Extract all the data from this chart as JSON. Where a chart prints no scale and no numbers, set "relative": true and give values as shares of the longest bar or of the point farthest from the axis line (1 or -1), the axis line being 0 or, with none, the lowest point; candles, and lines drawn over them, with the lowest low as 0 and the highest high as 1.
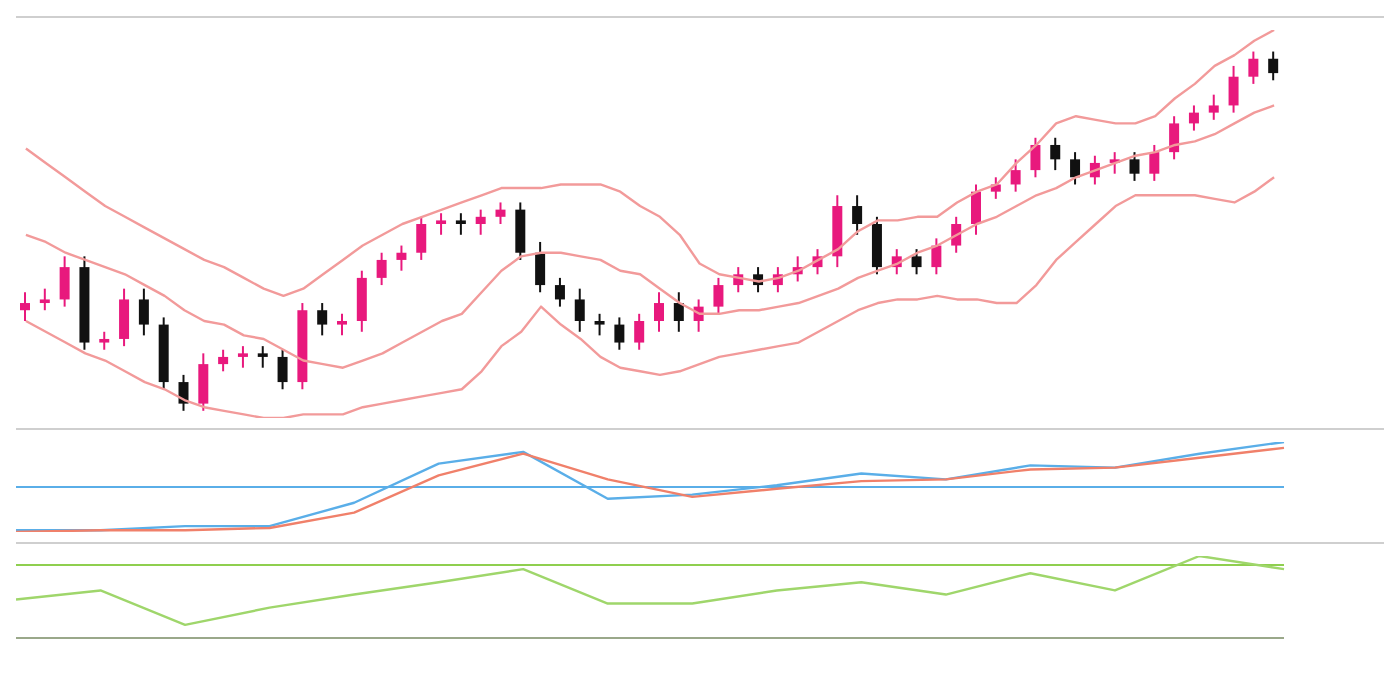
{
  "chart_data": [
    {
      "type": "candlestick",
      "relative": true,
      "legend": false,
      "categories": [
        null,
        null,
        null,
        null,
        null,
        null,
        null,
        null,
        null,
        null,
        null,
        null,
        null,
        null,
        null,
        null,
        null,
        null,
        null,
        null,
        null,
        null,
        null,
        null,
        null,
        null,
        null,
        null,
        null,
        null,
        null,
        null,
        null,
        null,
        null,
        null,
        null,
        null,
        null,
        null,
        null,
        null,
        null,
        null,
        null,
        null,
        null,
        null,
        null,
        null,
        null,
        null,
        null,
        null,
        null,
        null,
        null,
        null,
        null,
        null,
        null,
        null,
        null,
        null
      ],
      "ohlc": [
        [
          0.28,
          0.33,
          0.25,
          0.3
        ],
        [
          0.3,
          0.34,
          0.28,
          0.31
        ],
        [
          0.31,
          0.43,
          0.29,
          0.4
        ],
        [
          0.4,
          0.43,
          0.17,
          0.19
        ],
        [
          0.19,
          0.22,
          0.17,
          0.2
        ],
        [
          0.2,
          0.34,
          0.18,
          0.31
        ],
        [
          0.31,
          0.34,
          0.21,
          0.24
        ],
        [
          0.24,
          0.26,
          0.06,
          0.08
        ],
        [
          0.08,
          0.1,
          0.0,
          0.02
        ],
        [
          0.02,
          0.16,
          0.0,
          0.13
        ],
        [
          0.13,
          0.17,
          0.11,
          0.15
        ],
        [
          0.15,
          0.18,
          0.12,
          0.16
        ],
        [
          0.16,
          0.18,
          0.12,
          0.15
        ],
        [
          0.15,
          0.17,
          0.06,
          0.08
        ],
        [
          0.08,
          0.3,
          0.06,
          0.28
        ],
        [
          0.28,
          0.3,
          0.21,
          0.24
        ],
        [
          0.24,
          0.27,
          0.21,
          0.25
        ],
        [
          0.25,
          0.39,
          0.22,
          0.37
        ],
        [
          0.37,
          0.44,
          0.35,
          0.42
        ],
        [
          0.42,
          0.46,
          0.39,
          0.44
        ],
        [
          0.44,
          0.54,
          0.42,
          0.52
        ],
        [
          0.52,
          0.55,
          0.49,
          0.53
        ],
        [
          0.53,
          0.55,
          0.49,
          0.52
        ],
        [
          0.52,
          0.56,
          0.49,
          0.54
        ],
        [
          0.54,
          0.58,
          0.52,
          0.56
        ],
        [
          0.56,
          0.58,
          0.42,
          0.44
        ],
        [
          0.44,
          0.47,
          0.33,
          0.35
        ],
        [
          0.35,
          0.37,
          0.29,
          0.31
        ],
        [
          0.31,
          0.34,
          0.22,
          0.25
        ],
        [
          0.25,
          0.27,
          0.21,
          0.24
        ],
        [
          0.24,
          0.26,
          0.17,
          0.19
        ],
        [
          0.19,
          0.27,
          0.17,
          0.25
        ],
        [
          0.25,
          0.33,
          0.22,
          0.3
        ],
        [
          0.3,
          0.33,
          0.22,
          0.25
        ],
        [
          0.25,
          0.31,
          0.22,
          0.29
        ],
        [
          0.29,
          0.37,
          0.27,
          0.35
        ],
        [
          0.35,
          0.4,
          0.33,
          0.38
        ],
        [
          0.38,
          0.4,
          0.33,
          0.35
        ],
        [
          0.35,
          0.4,
          0.33,
          0.38
        ],
        [
          0.38,
          0.43,
          0.36,
          0.4
        ],
        [
          0.4,
          0.45,
          0.38,
          0.43
        ],
        [
          0.43,
          0.6,
          0.4,
          0.57
        ],
        [
          0.57,
          0.6,
          0.49,
          0.52
        ],
        [
          0.52,
          0.54,
          0.38,
          0.4
        ],
        [
          0.4,
          0.45,
          0.38,
          0.43
        ],
        [
          0.43,
          0.45,
          0.38,
          0.4
        ],
        [
          0.4,
          0.48,
          0.38,
          0.46
        ],
        [
          0.46,
          0.54,
          0.44,
          0.52
        ],
        [
          0.52,
          0.63,
          0.49,
          0.61
        ],
        [
          0.61,
          0.65,
          0.59,
          0.63
        ],
        [
          0.63,
          0.7,
          0.61,
          0.67
        ],
        [
          0.67,
          0.76,
          0.65,
          0.74
        ],
        [
          0.74,
          0.76,
          0.67,
          0.7
        ],
        [
          0.7,
          0.72,
          0.63,
          0.65
        ],
        [
          0.65,
          0.71,
          0.63,
          0.69
        ],
        [
          0.69,
          0.72,
          0.66,
          0.7
        ],
        [
          0.7,
          0.72,
          0.64,
          0.66
        ],
        [
          0.66,
          0.74,
          0.64,
          0.72
        ],
        [
          0.72,
          0.82,
          0.7,
          0.8
        ],
        [
          0.8,
          0.85,
          0.78,
          0.83
        ],
        [
          0.83,
          0.88,
          0.81,
          0.85
        ],
        [
          0.85,
          0.96,
          0.83,
          0.93
        ],
        [
          0.93,
          1.0,
          0.91,
          0.98
        ],
        [
          0.98,
          1.0,
          0.92,
          0.94
        ]
      ],
      "colors": [
        "#e8197d",
        "#e8197d",
        "#e8197d",
        "#111111",
        "#e8197d",
        "#e8197d",
        "#111111",
        "#111111",
        "#111111",
        "#e8197d",
        "#e8197d",
        "#e8197d",
        "#111111",
        "#111111",
        "#e8197d",
        "#111111",
        "#e8197d",
        "#e8197d",
        "#e8197d",
        "#e8197d",
        "#e8197d",
        "#e8197d",
        "#111111",
        "#e8197d",
        "#e8197d",
        "#111111",
        "#111111",
        "#111111",
        "#111111",
        "#111111",
        "#111111",
        "#e8197d",
        "#e8197d",
        "#111111",
        "#e8197d",
        "#e8197d",
        "#e8197d",
        "#111111",
        "#e8197d",
        "#e8197d",
        "#e8197d",
        "#e8197d",
        "#111111",
        "#111111",
        "#e8197d",
        "#111111",
        "#e8197d",
        "#e8197d",
        "#e8197d",
        "#e8197d",
        "#e8197d",
        "#e8197d",
        "#111111",
        "#111111",
        "#e8197d",
        "#e8197d",
        "#111111",
        "#e8197d",
        "#e8197d",
        "#e8197d",
        "#e8197d",
        "#e8197d",
        "#e8197d",
        "#111111"
      ],
      "series": [
        {
          "type": "line",
          "color": "#f29a9a",
          "values": [
            0.73,
            0.69,
            0.65,
            0.61,
            0.57,
            0.54,
            0.51,
            0.48,
            0.45,
            0.42,
            0.4,
            0.37,
            0.34,
            0.32,
            0.34,
            0.38,
            0.42,
            0.46,
            0.49,
            0.52,
            0.54,
            0.56,
            0.58,
            0.6,
            0.62,
            0.62,
            0.62,
            0.63,
            0.63,
            0.63,
            0.61,
            0.57,
            0.54,
            0.49,
            0.41,
            0.38,
            0.37,
            0.36,
            0.37,
            0.39,
            0.42,
            0.45,
            0.5,
            0.53,
            0.53,
            0.54,
            0.54,
            0.58,
            0.61,
            0.63,
            0.69,
            0.74,
            0.8,
            0.82,
            0.81,
            0.8,
            0.8,
            0.82,
            0.87,
            0.91,
            0.96,
            0.99,
            1.03,
            1.06
          ]
        },
        {
          "type": "line",
          "color": "#f29a9a",
          "values": [
            0.49,
            0.47,
            0.44,
            0.42,
            0.4,
            0.38,
            0.35,
            0.32,
            0.28,
            0.25,
            0.24,
            0.21,
            0.2,
            0.17,
            0.14,
            0.13,
            0.12,
            0.14,
            0.16,
            0.19,
            0.22,
            0.25,
            0.27,
            0.33,
            0.39,
            0.43,
            0.44,
            0.44,
            0.43,
            0.42,
            0.39,
            0.38,
            0.34,
            0.3,
            0.27,
            0.27,
            0.28,
            0.28,
            0.29,
            0.3,
            0.32,
            0.34,
            0.37,
            0.39,
            0.41,
            0.44,
            0.46,
            0.49,
            0.52,
            0.54,
            0.57,
            0.6,
            0.62,
            0.65,
            0.67,
            0.69,
            0.71,
            0.72,
            0.74,
            0.75,
            0.77,
            0.8,
            0.83,
            0.85
          ]
        },
        {
          "type": "line",
          "color": "#f29a9a",
          "values": [
            0.25,
            0.22,
            0.19,
            0.16,
            0.14,
            0.11,
            0.08,
            0.06,
            0.03,
            0.01,
            0.0,
            -0.01,
            -0.02,
            -0.02,
            -0.01,
            -0.01,
            -0.01,
            0.01,
            0.02,
            0.03,
            0.04,
            0.05,
            0.06,
            0.11,
            0.18,
            0.22,
            0.29,
            0.24,
            0.2,
            0.15,
            0.12,
            0.11,
            0.1,
            0.11,
            0.13,
            0.15,
            0.16,
            0.17,
            0.18,
            0.19,
            0.22,
            0.25,
            0.28,
            0.3,
            0.31,
            0.31,
            0.32,
            0.31,
            0.31,
            0.3,
            0.3,
            0.35,
            0.42,
            0.47,
            0.52,
            0.57,
            0.6,
            0.6,
            0.6,
            0.6,
            0.59,
            0.58,
            0.61,
            0.65
          ]
        }
      ]
    },
    {
      "type": "line",
      "relative": true,
      "legend": false,
      "categories": [
        null,
        null,
        null,
        null,
        null,
        null,
        null,
        null,
        null,
        null,
        null,
        null,
        null,
        null,
        null,
        null
      ],
      "series": [
        {
          "color": "#5aaee8",
          "values": [
            -0.96,
            -0.96,
            -0.87,
            -0.87,
            -0.35,
            0.52,
            0.78,
            -0.26,
            -0.17,
            0.04,
            0.3,
            0.17,
            0.48,
            0.43,
            0.74,
            1.0
          ]
        },
        {
          "color": "#f0806a",
          "values": [
            -1.0,
            -0.96,
            -0.96,
            -0.91,
            -0.57,
            0.26,
            0.74,
            0.17,
            -0.22,
            -0.04,
            0.13,
            0.17,
            0.39,
            0.43,
            0.65,
            0.87
          ]
        }
      ],
      "ref_lines": [
        {
          "axis": "y",
          "value": 0,
          "color": "#5aaee8"
        }
      ]
    },
    {
      "type": "line",
      "relative": true,
      "legend": false,
      "categories": [
        null,
        null,
        null,
        null,
        null,
        null,
        null,
        null,
        null,
        null,
        null,
        null,
        null,
        null,
        null,
        null
      ],
      "series": [
        {
          "color": "#9fd66b",
          "values": [
            0.47,
            0.58,
            0.16,
            0.37,
            0.53,
            0.68,
            0.84,
            0.42,
            0.42,
            0.58,
            0.68,
            0.53,
            0.79,
            0.58,
            1,
            0.84
          ]
        }
      ],
      "ref_lines": [
        {
          "axis": "y",
          "value": 0.89,
          "color": "#8fcf4f"
        },
        {
          "axis": "y",
          "value": 0,
          "color": "#9aa88a"
        }
      ]
    }
  ]
}
